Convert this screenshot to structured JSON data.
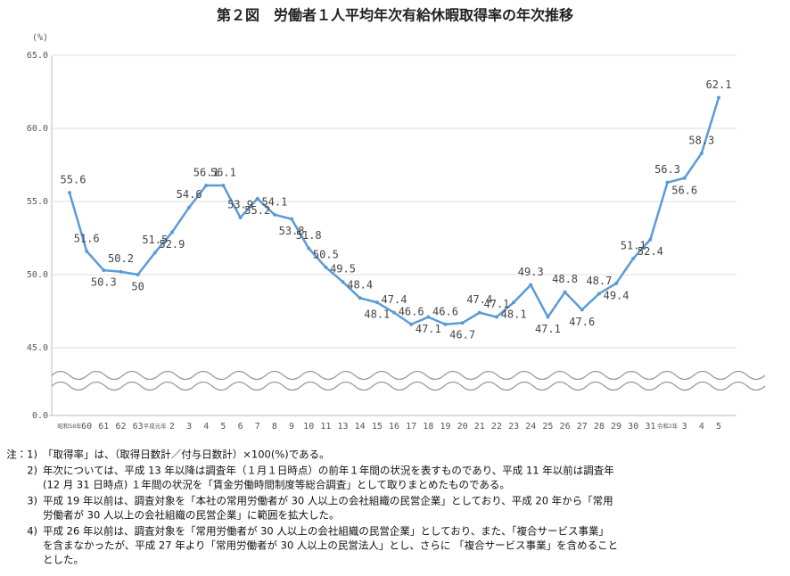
{
  "chart_data": {
    "type": "line",
    "title": "第２図　労働者１人平均年次有給休暇取得率の年次推移",
    "y_unit": "(%)",
    "categories": [
      "昭和58年",
      "60",
      "61",
      "62",
      "63",
      "平成元年",
      "2",
      "3",
      "4",
      "5",
      "6",
      "7",
      "8",
      "9",
      "10",
      "11",
      "13",
      "14",
      "15",
      "16",
      "17",
      "18",
      "19",
      "20",
      "21",
      "22",
      "23",
      "24",
      "25",
      "26",
      "27",
      "28",
      "29",
      "30",
      "31",
      "令和2年",
      "3",
      "4",
      "5"
    ],
    "series": [
      {
        "name": "取得率",
        "color": "#5b9bd5",
        "values": [
          55.6,
          51.6,
          50.3,
          50.2,
          50.0,
          51.5,
          52.9,
          54.6,
          56.1,
          56.1,
          53.9,
          55.2,
          54.1,
          53.8,
          51.8,
          50.5,
          49.5,
          48.4,
          48.1,
          47.4,
          46.6,
          47.1,
          46.6,
          46.7,
          47.4,
          47.1,
          48.1,
          49.3,
          47.1,
          48.8,
          47.6,
          48.7,
          49.4,
          51.1,
          52.4,
          56.3,
          56.6,
          58.3,
          62.1
        ]
      }
    ],
    "ylim": [
      45,
      65
    ],
    "yticks": [
      {
        "value": 0,
        "label": "0.0"
      },
      {
        "value": 45,
        "label": "45.0"
      },
      {
        "value": 50,
        "label": "50.0"
      },
      {
        "value": 55,
        "label": "55.0"
      },
      {
        "value": 60,
        "label": "60.0"
      },
      {
        "value": 65,
        "label": "65.0"
      }
    ],
    "grid": true,
    "axis_break": true
  },
  "notes": [
    {
      "marker": "注：1)",
      "lines": [
        "「取得率」は、（取得日数計／付与日数計）×100(%)である。"
      ]
    },
    {
      "marker": "2)",
      "lines": [
        "年次については、平成 13 年以降は調査年（１月１日時点）の前年１年間の状況を表すものであり、平成 11 年以前は調査年",
        "(12 月 31 日時点) １年間の状況を「賃金労働時間制度等総合調査」として取りまとめたものである。"
      ]
    },
    {
      "marker": "3)",
      "lines": [
        "平成 19 年以前は、調査対象を「本社の常用労働者が 30 人以上の会社組織の民営企業」としており、平成 20 年から「常用",
        "労働者が 30 人以上の会社組織の民営企業」に範囲を拡大した。"
      ]
    },
    {
      "marker": "4)",
      "lines": [
        "平成 26 年以前は、調査対象を「常用労働者が 30 人以上の会社組織の民営企業」としており、また、「複合サービス事業」",
        "を含まなかったが、平成 27 年より「常用労働者が 30 人以上の民営法人」とし、さらに 「複合サービス事業」を含めること",
        "とした。"
      ]
    }
  ]
}
